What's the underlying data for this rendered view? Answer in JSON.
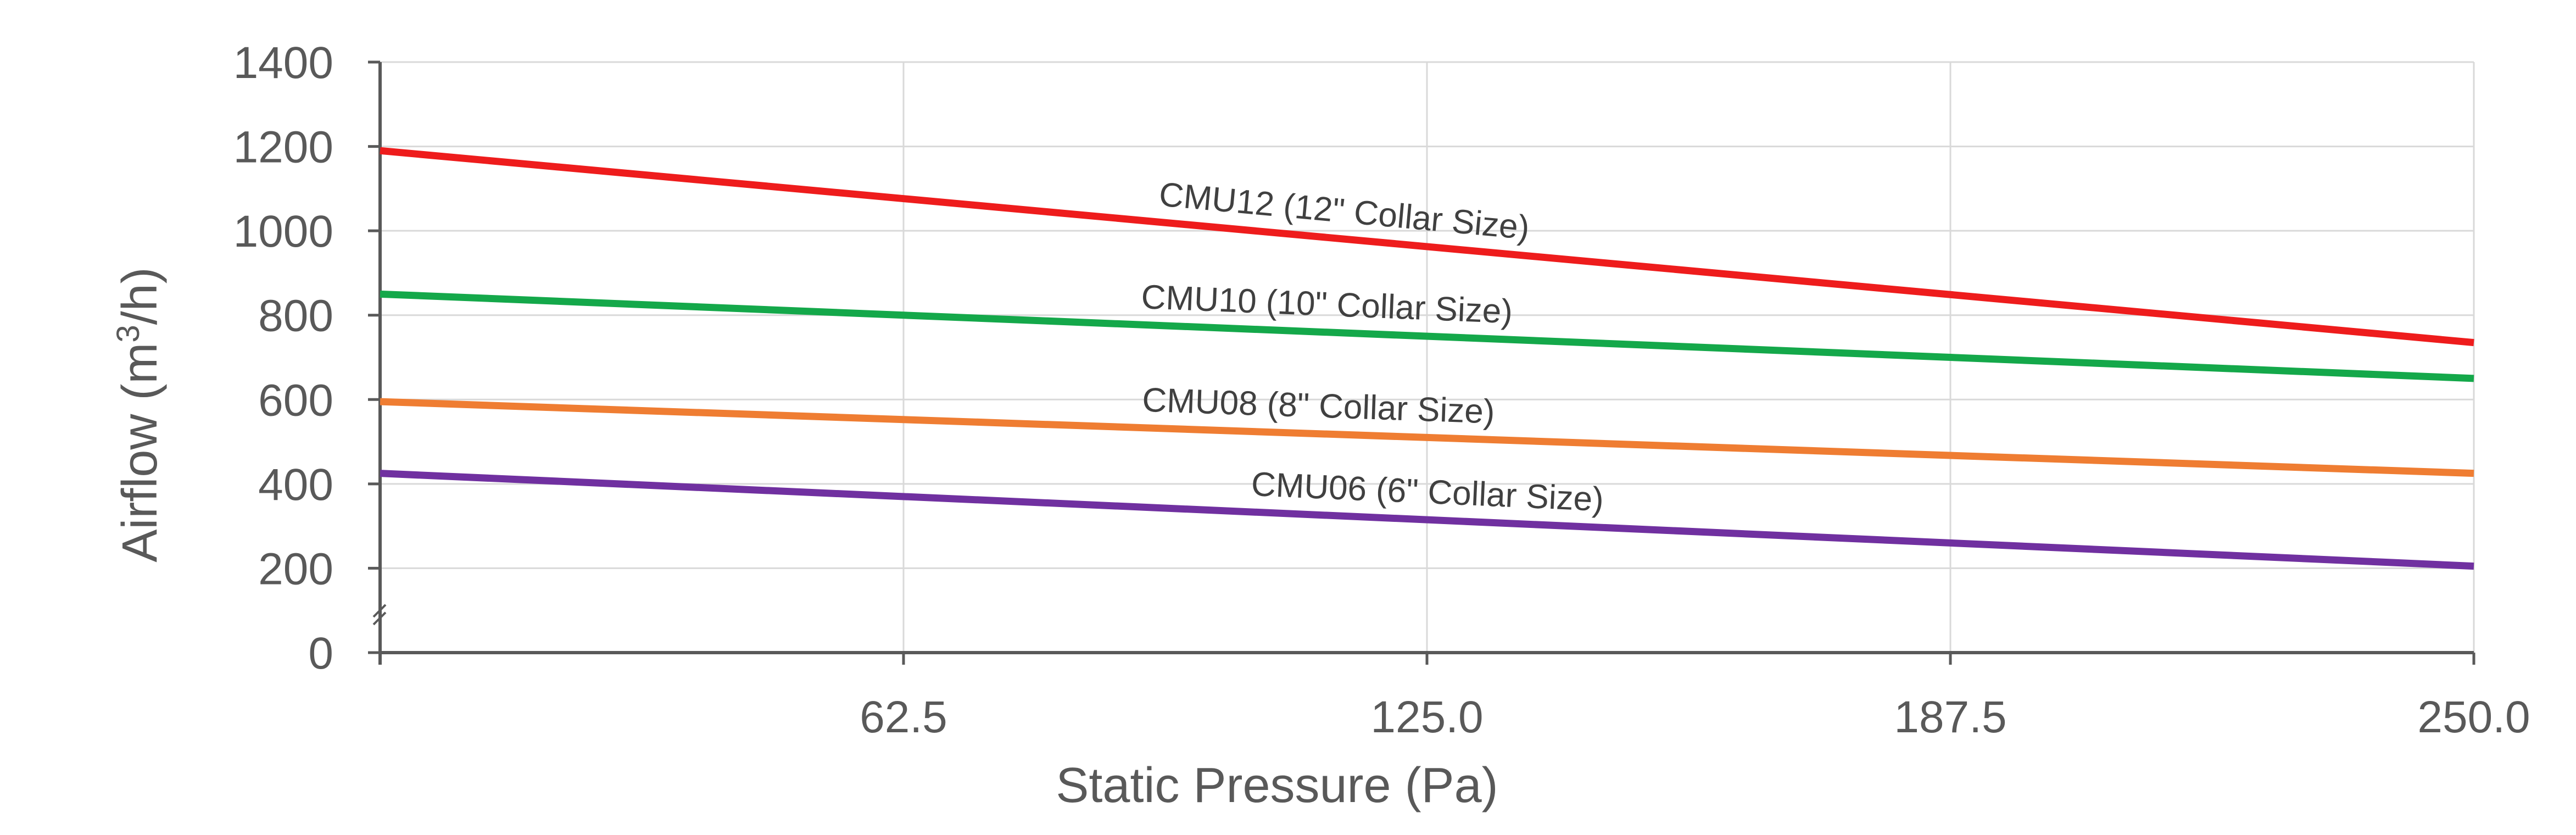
{
  "chart_data": {
    "type": "line",
    "title": "",
    "xlabel": "Static Pressure (Pa)",
    "ylabel_parts": {
      "main": "Airflow (m",
      "sup": "3",
      "end": "/h)"
    },
    "xlim": [
      0,
      250
    ],
    "ylim": [
      0,
      1400
    ],
    "x_ticks": [
      62.5,
      125.0,
      187.5,
      250.0
    ],
    "x_tick_labels": [
      "62.5",
      "125.0",
      "187.5",
      "250.0"
    ],
    "y_ticks": [
      0,
      200,
      400,
      600,
      800,
      1000,
      1200,
      1400
    ],
    "y_tick_labels": [
      "0",
      "200",
      "400",
      "600",
      "800",
      "1000",
      "1200",
      "1400"
    ],
    "grid": true,
    "legend": "inline",
    "series": [
      {
        "name": "CMU12 (12\" Collar Size)",
        "color": "#ee1c1c",
        "x": [
          0,
          250
        ],
        "y": [
          1190,
          735
        ],
        "label_at_x": 115
      },
      {
        "name": "CMU10 (10\" Collar Size)",
        "color": "#14a84a",
        "x": [
          0,
          250
        ],
        "y": [
          850,
          650
        ],
        "label_at_x": 113
      },
      {
        "name": "CMU08 (8\" Collar Size)",
        "color": "#ef7d32",
        "x": [
          0,
          250
        ],
        "y": [
          595,
          425
        ],
        "label_at_x": 112
      },
      {
        "name": "CMU06 (6\" Collar Size)",
        "color": "#7030a0",
        "x": [
          0,
          250
        ],
        "y": [
          425,
          205
        ],
        "label_at_x": 125
      }
    ]
  }
}
